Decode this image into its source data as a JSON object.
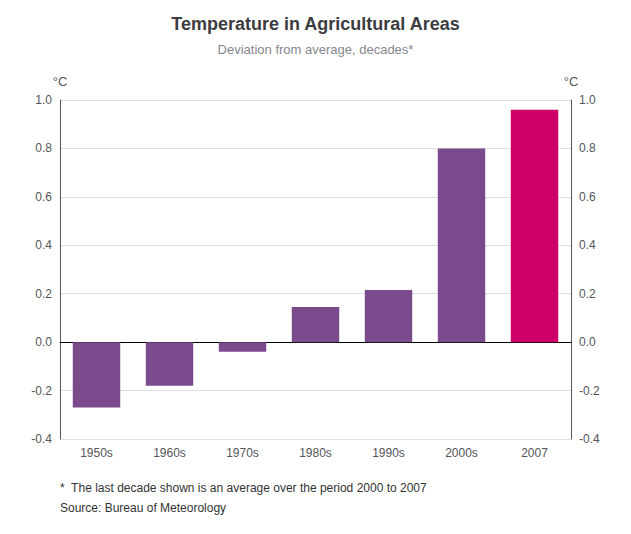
{
  "chart_data": {
    "type": "bar",
    "title": "Temperature in Agricultural Areas",
    "subtitle": "Deviation from average, decades*",
    "categories": [
      "1950s",
      "1960s",
      "1970s",
      "1980s",
      "1990s",
      "2000s",
      "2007"
    ],
    "values": [
      -0.27,
      -0.18,
      -0.04,
      0.145,
      0.215,
      0.8,
      0.96
    ],
    "colors": [
      "#7b4a8c",
      "#7b4a8c",
      "#7b4a8c",
      "#7b4a8c",
      "#7b4a8c",
      "#7b4a8c",
      "#cc0066"
    ],
    "ylim": [
      -0.4,
      1.0
    ],
    "yticks": [
      -0.4,
      -0.2,
      {
        "value": 0,
        "label": "0.0"
      },
      0.2,
      0.4,
      0.6,
      0.8,
      {
        "value": 1,
        "label": "1.0"
      }
    ],
    "y2lim": [
      -0.4,
      1.0
    ],
    "y2ticks": [
      -0.4,
      -0.2,
      {
        "value": 0,
        "label": "0.0"
      },
      0.2,
      0.4,
      0.6,
      0.8,
      {
        "value": 1,
        "label": "1.0"
      }
    ],
    "ylabel": "°C",
    "y2label": "°C",
    "footnotes": [
      "*  The last decade shown is an average over the period 2000 to 2007",
      "Source: Bureau of Meteorology"
    ],
    "grid": true
  }
}
